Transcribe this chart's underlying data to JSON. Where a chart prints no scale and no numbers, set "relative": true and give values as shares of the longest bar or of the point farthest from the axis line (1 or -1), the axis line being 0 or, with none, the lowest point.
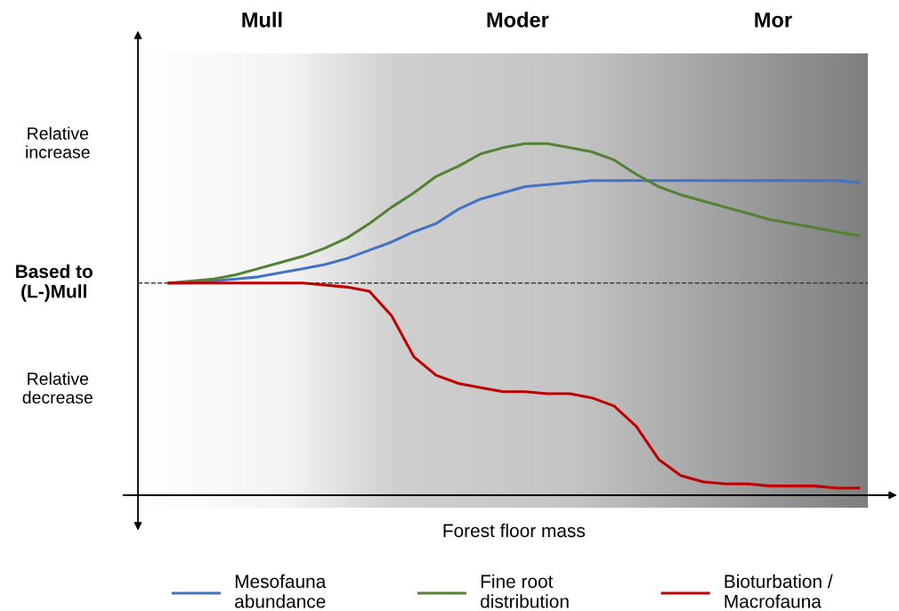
{
  "chart_data": {
    "type": "line",
    "relative": true,
    "xlabel": "Forest floor mass",
    "categories": [
      null,
      null,
      null,
      null,
      null,
      null,
      null,
      null,
      null,
      null,
      null,
      null,
      null,
      null,
      null,
      null,
      null,
      null,
      null,
      null,
      null,
      null,
      null,
      null,
      null,
      null,
      null,
      null,
      null,
      null,
      null,
      null
    ],
    "series": [
      {
        "name": "Mesofauna\nabundance",
        "color": "#4472c4",
        "values": [
          0,
          0,
          0.01,
          0.02,
          0.03,
          0.05,
          0.07,
          0.09,
          0.12,
          0.16,
          0.2,
          0.25,
          0.29,
          0.36,
          0.41,
          0.44,
          0.47,
          0.48,
          0.49,
          0.5,
          0.5,
          0.5,
          0.5,
          0.5,
          0.5,
          0.5,
          0.5,
          0.5,
          0.5,
          0.5,
          0.5,
          0.49
        ]
      },
      {
        "name": "Fine root\ndistribution",
        "color": "#548235",
        "values": [
          0,
          0.01,
          0.02,
          0.04,
          0.07,
          0.1,
          0.13,
          0.17,
          0.22,
          0.29,
          0.37,
          0.44,
          0.52,
          0.57,
          0.63,
          0.66,
          0.68,
          0.68,
          0.66,
          0.64,
          0.6,
          0.53,
          0.47,
          0.43,
          0.4,
          0.37,
          0.34,
          0.31,
          0.29,
          0.27,
          0.25,
          0.23
        ]
      },
      {
        "name": "Bioturbation /\nMacrofauna",
        "color": "#c00000",
        "values": [
          0,
          0,
          0,
          0,
          0,
          0,
          0,
          -0.01,
          -0.02,
          -0.04,
          -0.16,
          -0.36,
          -0.45,
          -0.49,
          -0.51,
          -0.53,
          -0.53,
          -0.54,
          -0.54,
          -0.56,
          -0.6,
          -0.7,
          -0.86,
          -0.94,
          -0.97,
          -0.98,
          -0.98,
          -0.99,
          -0.99,
          -0.99,
          -1,
          -1
        ]
      }
    ],
    "ref_lines": [
      {
        "axis": "y",
        "value": 0,
        "label": "Based to\n(L-)Mull",
        "color": "#404040",
        "line_style": "dashed"
      }
    ],
    "annotations": [
      "Mull",
      "Moder",
      "Mor",
      "Relative\nincrease",
      "Relative\ndecrease"
    ],
    "legend": "bottom",
    "marker": "none",
    "line_style": "solid"
  }
}
